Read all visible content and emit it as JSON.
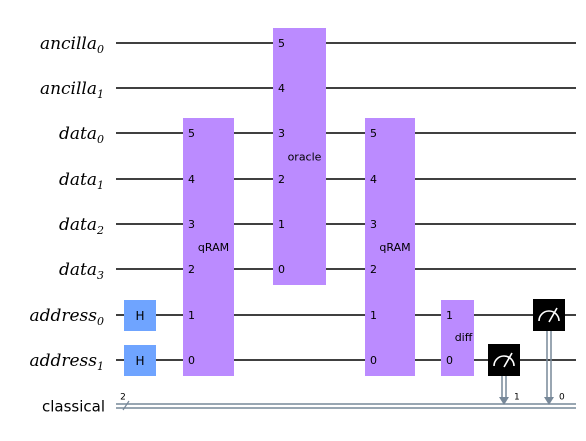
{
  "circuit": {
    "qubits": [
      {
        "name": "ancilla",
        "index": "0"
      },
      {
        "name": "ancilla",
        "index": "1"
      },
      {
        "name": "data",
        "index": "0"
      },
      {
        "name": "data",
        "index": "1"
      },
      {
        "name": "data",
        "index": "2"
      },
      {
        "name": "data",
        "index": "3"
      },
      {
        "name": "address",
        "index": "0"
      },
      {
        "name": "address",
        "index": "1"
      }
    ],
    "classical": {
      "name": "classical",
      "size": "2"
    },
    "gates": [
      {
        "id": "h0",
        "label": "H",
        "qubits": [
          6
        ]
      },
      {
        "id": "h1",
        "label": "H",
        "qubits": [
          7
        ]
      },
      {
        "id": "qram1",
        "label": "qRAM",
        "qubits": [
          2,
          3,
          4,
          5,
          6,
          7
        ],
        "pins": [
          "5",
          "4",
          "3",
          "2",
          "1",
          "0"
        ]
      },
      {
        "id": "oracle",
        "label": "oracle",
        "qubits": [
          0,
          1,
          2,
          3,
          4,
          5
        ],
        "pins": [
          "5",
          "4",
          "3",
          "2",
          "1",
          "0"
        ]
      },
      {
        "id": "qram2",
        "label": "qRAM",
        "qubits": [
          2,
          3,
          4,
          5,
          6,
          7
        ],
        "pins": [
          "5",
          "4",
          "3",
          "2",
          "1",
          "0"
        ]
      },
      {
        "id": "diff",
        "label": "diff",
        "qubits": [
          6,
          7
        ],
        "pins": [
          "1",
          "0"
        ]
      }
    ],
    "measurements": [
      {
        "qubit": 7,
        "cbit": "1"
      },
      {
        "qubit": 6,
        "cbit": "0"
      }
    ],
    "colors": {
      "h_gate": "#6fa4ff",
      "custom_gate": "#bb8bff",
      "measure": "#000000",
      "classical_wire": "#778899",
      "wire": "#000000"
    }
  }
}
